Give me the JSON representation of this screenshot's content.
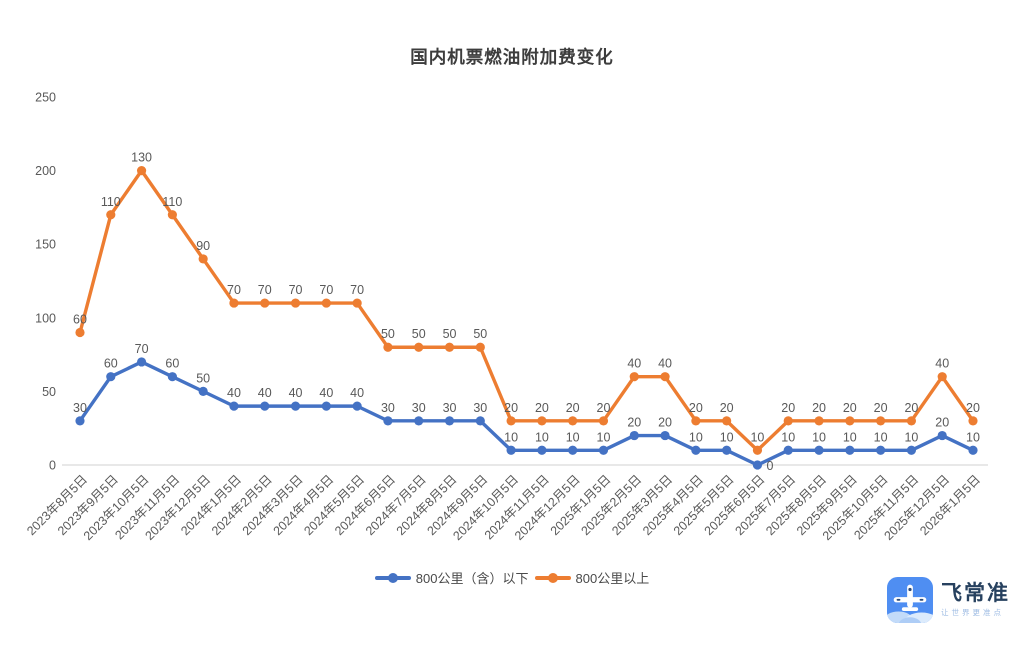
{
  "title": "国内机票燃油附加费变化",
  "chart_data": {
    "type": "line",
    "plot_mode": "stacked",
    "title": "国内机票燃油附加费变化",
    "xlabel": "",
    "ylabel": "",
    "ylim": [
      0,
      250
    ],
    "y_ticks": [
      0,
      50,
      100,
      150,
      200,
      250
    ],
    "grid": false,
    "legend_position": "bottom",
    "categories": [
      "2023年8月5日",
      "2023年9月5日",
      "2023年10月5日",
      "2023年11月5日",
      "2023年12月5日",
      "2024年1月5日",
      "2024年2月5日",
      "2024年3月5日",
      "2024年4月5日",
      "2024年5月5日",
      "2024年6月5日",
      "2024年7月5日",
      "2024年8月5日",
      "2024年9月5日",
      "2024年10月5日",
      "2024年11月5日",
      "2024年12月5日",
      "2025年1月5日",
      "2025年2月5日",
      "2025年3月5日",
      "2025年4月5日",
      "2025年5月5日",
      "2025年6月5日",
      "2025年7月5日",
      "2025年8月5日",
      "2025年9月5日",
      "2025年10月5日",
      "2025年11月5日",
      "2025年12月5日",
      "2026年1月5日"
    ],
    "series": [
      {
        "name": "800公里（含）以下",
        "color": "#4472C4",
        "values": [
          30,
          60,
          70,
          60,
          50,
          40,
          40,
          40,
          40,
          40,
          30,
          30,
          30,
          30,
          10,
          10,
          10,
          10,
          20,
          20,
          10,
          10,
          0,
          10,
          10,
          10,
          10,
          10,
          20,
          10
        ]
      },
      {
        "name": "800公里以上",
        "color": "#ED7D31",
        "values": [
          60,
          110,
          130,
          110,
          90,
          70,
          70,
          70,
          70,
          70,
          50,
          50,
          50,
          50,
          20,
          20,
          20,
          20,
          40,
          40,
          20,
          20,
          10,
          20,
          20,
          20,
          20,
          20,
          40,
          20
        ]
      }
    ]
  },
  "colors": {
    "axis_label": "#595959",
    "data_label": "#595959",
    "axis_line": "#d9d9d9",
    "title": "#3d3d3d",
    "background": "#ffffff"
  },
  "branding": {
    "logo_text": "飞常准",
    "tagline": "让世界更准点",
    "brand_color": "#4f8ef2"
  }
}
